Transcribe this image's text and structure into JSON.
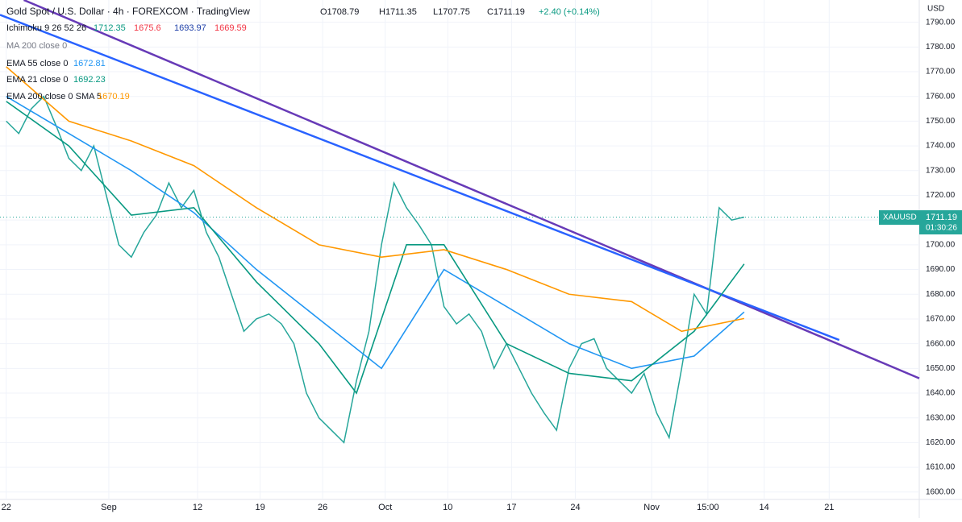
{
  "chart_data": {
    "type": "line",
    "title": "Gold Spot / U.S. Dollar · 4h · FOREXCOM · TradingView",
    "ohlc": {
      "open": "O1708.79",
      "high": "H1711.35",
      "low": "L1707.75",
      "close": "C1711.19",
      "change": "+2.40 (+0.14%)"
    },
    "indicators": [
      {
        "label": "Ichimoku 9 26 52 26",
        "values": [
          1712.35,
          1675.6,
          1693.97,
          1669.59
        ],
        "colors": [
          "#089981",
          "#f23645",
          "#1e3fa8",
          "#f23645"
        ]
      },
      {
        "label": "MA 200 close 0"
      }
    ],
    "currency": "USD",
    "countdown": "01:30:26",
    "xlim": [
      -0.5,
      73
    ],
    "xticks": [
      {
        "value": 0,
        "label": "22"
      },
      {
        "value": 8.2,
        "label": "Sep"
      },
      {
        "value": 15.3,
        "label": "12"
      },
      {
        "value": 20.3,
        "label": "19"
      },
      {
        "value": 25.3,
        "label": "26"
      },
      {
        "value": 30.3,
        "label": "Oct"
      },
      {
        "value": 35.3,
        "label": "10"
      },
      {
        "value": 40.4,
        "label": "17"
      },
      {
        "value": 45.5,
        "label": "24"
      },
      {
        "value": 51.6,
        "label": "Nov"
      },
      {
        "value": 56.1,
        "label": "15:00"
      },
      {
        "value": 60.6,
        "label": "14"
      },
      {
        "value": 65.8,
        "label": "21"
      }
    ],
    "ylim": [
      1597,
      1799
    ],
    "yticks": [
      {
        "value": 1600,
        "label": "1600.00"
      },
      {
        "value": 1610,
        "label": "1610.00"
      },
      {
        "value": 1620,
        "label": "1620.00"
      },
      {
        "value": 1630,
        "label": "1630.00"
      },
      {
        "value": 1640,
        "label": "1640.00"
      },
      {
        "value": 1650,
        "label": "1650.00"
      },
      {
        "value": 1660,
        "label": "1660.00"
      },
      {
        "value": 1670,
        "label": "1670.00"
      },
      {
        "value": 1680,
        "label": "1680.00"
      },
      {
        "value": 1690,
        "label": "1690.00"
      },
      {
        "value": 1700,
        "label": "1700.00"
      },
      {
        "value": 1710,
        "label": "1710.00"
      },
      {
        "value": 1720,
        "label": "1720.00"
      },
      {
        "value": 1730,
        "label": "1730.00"
      },
      {
        "value": 1740,
        "label": "1740.00"
      },
      {
        "value": 1750,
        "label": "1750.00"
      },
      {
        "value": 1760,
        "label": "1760.00"
      },
      {
        "value": 1770,
        "label": "1770.00"
      },
      {
        "value": 1780,
        "label": "1780.00"
      },
      {
        "value": 1790,
        "label": "1790.00"
      }
    ],
    "grid": true,
    "series": [
      {
        "name": "XAUUSD",
        "color": "#26a69a",
        "x": [
          0,
          1,
          2,
          3,
          4,
          5,
          6,
          7,
          8,
          9,
          10,
          11,
          12,
          13,
          14,
          15,
          16,
          17,
          18,
          19,
          20,
          21,
          22,
          23,
          24,
          25,
          26,
          27,
          28,
          29,
          30,
          31,
          32,
          33,
          34,
          35,
          36,
          37,
          38,
          39,
          40,
          41,
          42,
          43,
          44,
          45,
          46,
          47,
          48,
          49,
          50,
          51,
          52,
          53,
          54,
          55,
          56,
          57,
          58,
          59
        ],
        "values": [
          1750,
          1745,
          1755,
          1760,
          1748,
          1735,
          1730,
          1740,
          1720,
          1700,
          1695,
          1705,
          1712,
          1725,
          1715,
          1722,
          1705,
          1695,
          1680,
          1665,
          1670,
          1672,
          1668,
          1660,
          1640,
          1630,
          1625,
          1620,
          1645,
          1665,
          1700,
          1725,
          1715,
          1708,
          1700,
          1675,
          1668,
          1672,
          1665,
          1650,
          1660,
          1650,
          1640,
          1632,
          1625,
          1650,
          1660,
          1662,
          1650,
          1645,
          1640,
          1648,
          1632,
          1622,
          1650,
          1680,
          1672,
          1715,
          1710,
          1711.19
        ]
      },
      {
        "name": "EMA 55 close 0",
        "color": "#2196f3",
        "last": 1672.81,
        "x": [
          0,
          5,
          10,
          15,
          20,
          25,
          30,
          35,
          40,
          45,
          50,
          55,
          59
        ],
        "values": [
          1760,
          1745,
          1730,
          1713,
          1690,
          1670,
          1650,
          1690,
          1675,
          1660,
          1650,
          1655,
          1672.81
        ]
      },
      {
        "name": "EMA 21 close 0",
        "color": "#089981",
        "last": 1692.23,
        "x": [
          0,
          5,
          10,
          15,
          20,
          25,
          28,
          32,
          35,
          40,
          45,
          50,
          55,
          59
        ],
        "values": [
          1758,
          1740,
          1712,
          1715,
          1685,
          1660,
          1640,
          1700,
          1700,
          1660,
          1648,
          1645,
          1665,
          1692.23
        ]
      },
      {
        "name": "EMA 200 close 0 SMA 5",
        "color": "#ff9800",
        "last": 1670.19,
        "x": [
          0,
          5,
          10,
          15,
          20,
          25,
          30,
          35,
          40,
          45,
          50,
          54,
          59
        ],
        "values": [
          1772,
          1750,
          1742,
          1732,
          1715,
          1700,
          1695,
          1698,
          1690,
          1680,
          1677,
          1665,
          1670.19
        ]
      }
    ],
    "trendlines": [
      {
        "color": "#673ab7",
        "x": [
          1.4,
          73
        ],
        "values": [
          1799,
          1646
        ]
      },
      {
        "color": "#2962ff",
        "x": [
          -0.5,
          66.6
        ],
        "values": [
          1793,
          1661.5
        ]
      }
    ]
  }
}
